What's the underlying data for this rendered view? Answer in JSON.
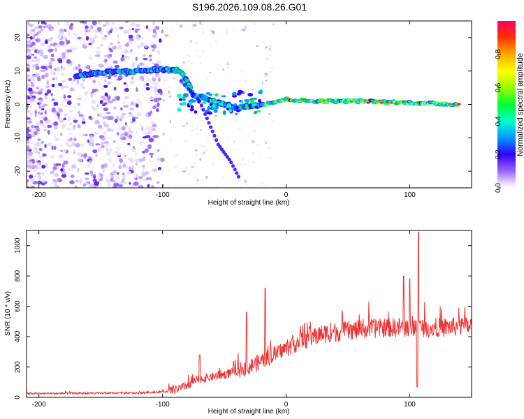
{
  "title": "S196.2026.109.08.26.G01",
  "chart_data": [
    {
      "type": "heatmap",
      "name": "spectrogram",
      "xlabel": "Height of straight line (km)",
      "ylabel": "Frequency (Hz)",
      "xlim": [
        -210,
        150
      ],
      "ylim": [
        -25,
        25
      ],
      "xticks": [
        -200,
        -100,
        0,
        100
      ],
      "yticks": [
        -20,
        -10,
        0,
        10,
        20
      ],
      "colorbar": {
        "label": "Normalized spectral amplitude",
        "range": [
          0,
          1
        ],
        "ticks": [
          0.0,
          0.2,
          0.4,
          0.6,
          0.8
        ]
      },
      "ridge": {
        "description_points_x": [
          -170,
          -150,
          -120,
          -100,
          -85,
          -75,
          -60,
          -40,
          -20,
          0,
          20,
          60,
          100,
          140
        ],
        "description_points_f": [
          8.5,
          9.5,
          10,
          10.5,
          10,
          3,
          1,
          -1,
          0,
          1.5,
          1,
          1,
          0.5,
          0
        ]
      },
      "branch": {
        "x": [
          -85,
          -70,
          -55,
          -45,
          -38
        ],
        "f": [
          7,
          1,
          -12,
          -17,
          -22
        ]
      }
    },
    {
      "type": "line",
      "name": "snr",
      "xlabel": "Height of straight line (km)",
      "ylabel": "SNR (10 * v/v)",
      "xlim": [
        -210,
        150
      ],
      "ylim": [
        0,
        1100
      ],
      "xticks": [
        -200,
        -100,
        0,
        100
      ],
      "yticks": [
        0,
        200,
        400,
        600,
        800,
        1000
      ],
      "color": "#ee3333",
      "trend": {
        "x": [
          -210,
          -120,
          -95,
          -85,
          -70,
          -50,
          -30,
          -10,
          10,
          30,
          50,
          80,
          100,
          120,
          150
        ],
        "y": [
          25,
          28,
          40,
          60,
          120,
          150,
          200,
          280,
          370,
          420,
          440,
          460,
          460,
          460,
          470
        ]
      },
      "spikes": [
        {
          "x": -70,
          "y": 280
        },
        {
          "x": -32,
          "y": 560
        },
        {
          "x": -17,
          "y": 720
        },
        {
          "x": 95,
          "y": 800
        },
        {
          "x": 100,
          "y": 780
        },
        {
          "x": 107,
          "y": 1090
        },
        {
          "x": 106,
          "y": 70
        }
      ]
    }
  ]
}
